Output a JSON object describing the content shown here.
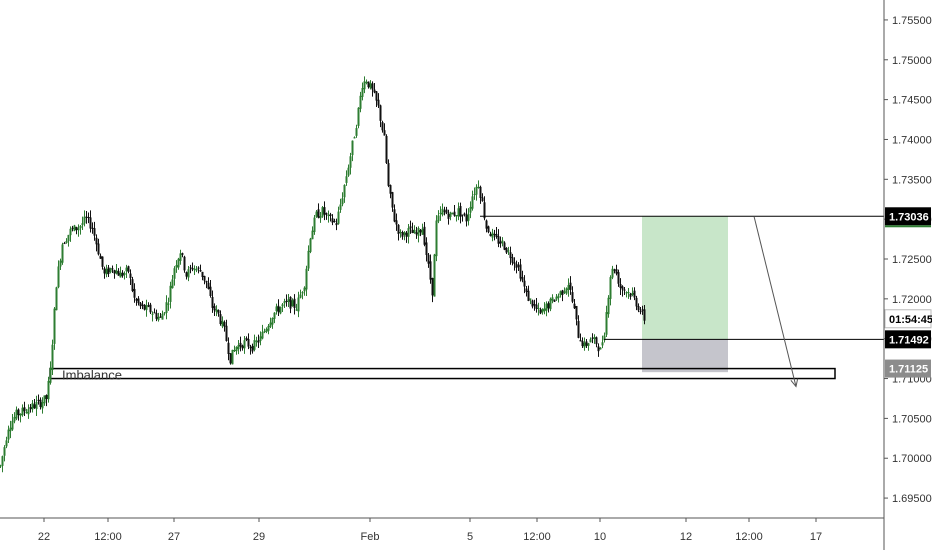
{
  "chart_data": {
    "type": "candlestick",
    "title": "",
    "price_axis": {
      "position": "right",
      "min": 1.6925,
      "max": 1.7575,
      "ticks": [
        "1.75500",
        "1.75000",
        "1.74500",
        "1.74000",
        "1.73500",
        "1.73000",
        "1.72500",
        "1.72000",
        "1.71500",
        "1.71000",
        "1.70500",
        "1.70000",
        "1.69500"
      ]
    },
    "time_axis": {
      "ticks": [
        {
          "label": "22",
          "bar": 44
        },
        {
          "label": "12:00",
          "bar": 108
        },
        {
          "label": "27",
          "bar": 174
        },
        {
          "label": "29",
          "bar": 259
        },
        {
          "label": "Feb",
          "bar": 370
        },
        {
          "label": "5",
          "bar": 470
        },
        {
          "label": "12:00",
          "bar": 537
        },
        {
          "label": "10",
          "bar": 600
        },
        {
          "label": "12",
          "bar": 686
        },
        {
          "label": "12:00",
          "bar": 749
        },
        {
          "label": "17",
          "bar": 816
        }
      ]
    },
    "grid": false,
    "candles_close_path": [
      [
        0,
        1.699
      ],
      [
        8,
        1.704
      ],
      [
        16,
        1.7055
      ],
      [
        24,
        1.706
      ],
      [
        32,
        1.7065
      ],
      [
        40,
        1.707
      ],
      [
        46,
        1.7075
      ],
      [
        50,
        1.711
      ],
      [
        56,
        1.722
      ],
      [
        62,
        1.727
      ],
      [
        70,
        1.7285
      ],
      [
        78,
        1.729
      ],
      [
        86,
        1.73
      ],
      [
        92,
        1.729
      ],
      [
        98,
        1.726
      ],
      [
        104,
        1.723
      ],
      [
        112,
        1.724
      ],
      [
        120,
        1.723
      ],
      [
        128,
        1.7235
      ],
      [
        134,
        1.72
      ],
      [
        140,
        1.719
      ],
      [
        150,
        1.7185
      ],
      [
        160,
        1.7175
      ],
      [
        168,
        1.72
      ],
      [
        174,
        1.724
      ],
      [
        180,
        1.726
      ],
      [
        186,
        1.723
      ],
      [
        192,
        1.724
      ],
      [
        200,
        1.7235
      ],
      [
        206,
        1.722
      ],
      [
        212,
        1.719
      ],
      [
        218,
        1.718
      ],
      [
        224,
        1.716
      ],
      [
        230,
        1.7125
      ],
      [
        236,
        1.714
      ],
      [
        244,
        1.7145
      ],
      [
        252,
        1.714
      ],
      [
        260,
        1.715
      ],
      [
        266,
        1.7165
      ],
      [
        272,
        1.718
      ],
      [
        280,
        1.719
      ],
      [
        288,
        1.7195
      ],
      [
        296,
        1.719
      ],
      [
        304,
        1.722
      ],
      [
        310,
        1.728
      ],
      [
        316,
        1.7305
      ],
      [
        322,
        1.731
      ],
      [
        328,
        1.73
      ],
      [
        336,
        1.7295
      ],
      [
        342,
        1.733
      ],
      [
        350,
        1.738
      ],
      [
        356,
        1.742
      ],
      [
        362,
        1.747
      ],
      [
        366,
        1.7475
      ],
      [
        372,
        1.746
      ],
      [
        378,
        1.744
      ],
      [
        384,
        1.74
      ],
      [
        388,
        1.734
      ],
      [
        394,
        1.73
      ],
      [
        400,
        1.728
      ],
      [
        408,
        1.7285
      ],
      [
        416,
        1.728
      ],
      [
        422,
        1.729
      ],
      [
        428,
        1.724
      ],
      [
        432,
        1.721
      ],
      [
        436,
        1.7295
      ],
      [
        442,
        1.731
      ],
      [
        450,
        1.7305
      ],
      [
        458,
        1.731
      ],
      [
        466,
        1.73
      ],
      [
        472,
        1.733
      ],
      [
        478,
        1.7345
      ],
      [
        482,
        1.732
      ],
      [
        486,
        1.729
      ],
      [
        494,
        1.7275
      ],
      [
        502,
        1.727
      ],
      [
        510,
        1.7255
      ],
      [
        518,
        1.724
      ],
      [
        526,
        1.7205
      ],
      [
        534,
        1.719
      ],
      [
        540,
        1.718
      ],
      [
        546,
        1.719
      ],
      [
        554,
        1.72
      ],
      [
        562,
        1.721
      ],
      [
        568,
        1.722
      ],
      [
        574,
        1.7185
      ],
      [
        578,
        1.7155
      ],
      [
        584,
        1.714
      ],
      [
        590,
        1.715
      ],
      [
        596,
        1.7145
      ],
      [
        600,
        1.7135
      ],
      [
        604,
        1.716
      ],
      [
        610,
        1.723
      ],
      [
        614,
        1.724
      ],
      [
        620,
        1.7215
      ],
      [
        626,
        1.721
      ],
      [
        632,
        1.7205
      ],
      [
        638,
        1.719
      ],
      [
        644,
        1.7175
      ]
    ],
    "horizontal_lines": [
      {
        "label": "1.73036",
        "price": 1.73036,
        "from_bar": 480,
        "badge_color": "#000000"
      },
      {
        "label": "1.71492",
        "price": 1.71492,
        "from_bar": 604,
        "badge_color": "#000000"
      }
    ],
    "badges": [
      {
        "label": "01:54:45",
        "price": 1.7175,
        "color": "#ffffff",
        "text_color": "#000000"
      },
      {
        "label": "1.71125",
        "price": 1.71125,
        "color": "#8c8c8c",
        "text_color": "#ffffff"
      }
    ],
    "position_box": {
      "from_bar": 642,
      "to_bar": 728,
      "entry": 1.71492,
      "target": 1.73036,
      "stop": 1.7108,
      "profit_color": "#c8e6c9",
      "loss_color": "#c5c5cc"
    },
    "zone": {
      "label": "Imbalance",
      "from_bar": 50,
      "to_bar": 835,
      "top": 1.71125,
      "bottom": 1.71
    },
    "arrow": {
      "from": {
        "bar": 754,
        "price": 1.73036
      },
      "to": {
        "bar": 796,
        "price": 1.709
      }
    },
    "colors": {
      "bull": "#2e7d32",
      "bear": "#111111",
      "axis": "#555555"
    }
  }
}
